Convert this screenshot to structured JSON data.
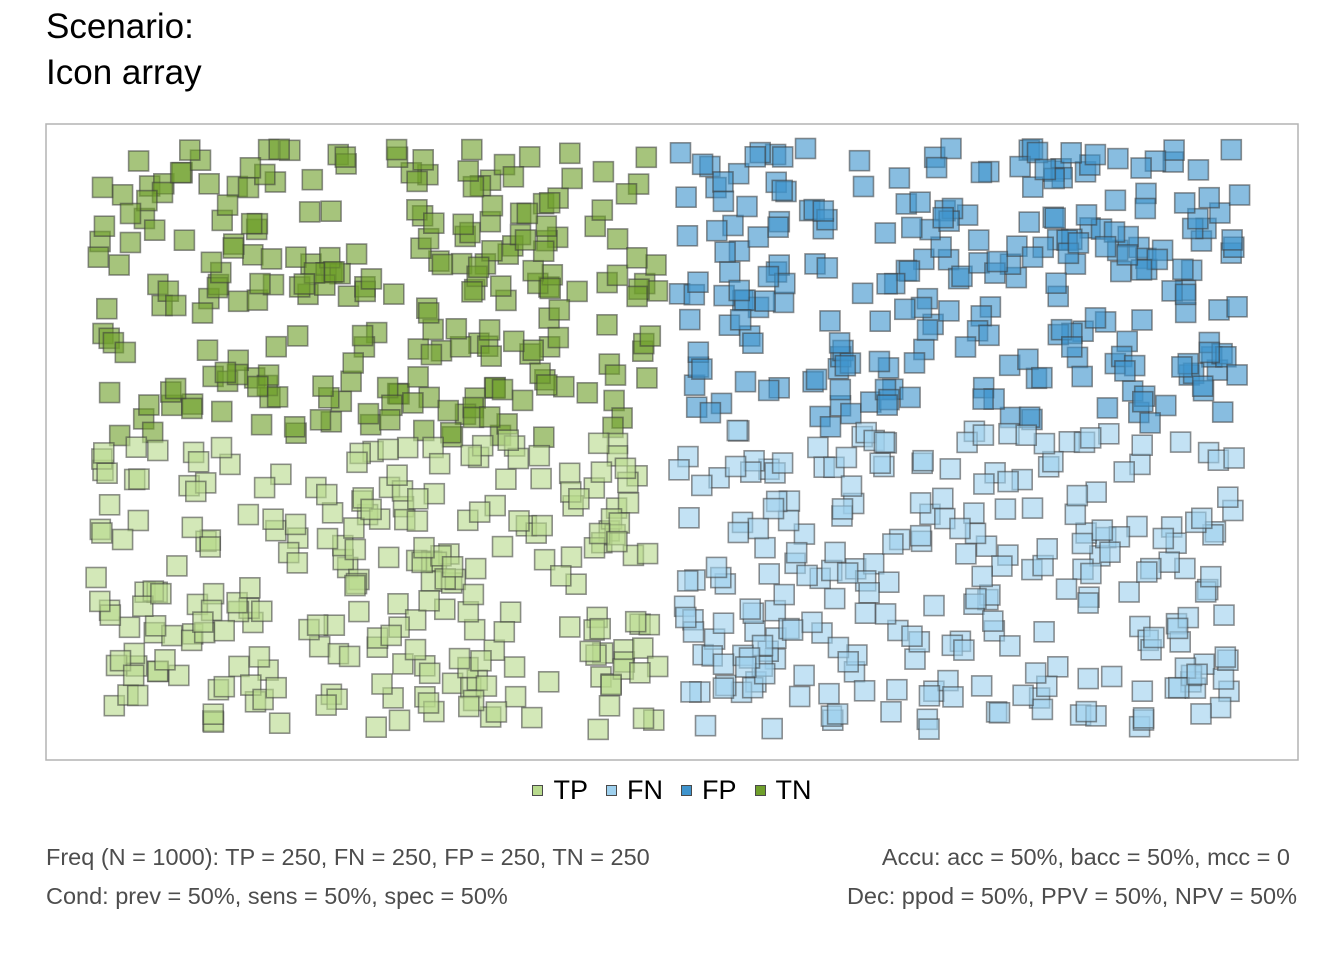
{
  "title": {
    "line1": "Scenario:",
    "line2": "Icon array"
  },
  "chart_data": {
    "type": "scatter",
    "description_of_marks": "icon array of 1000 semi-transparent square icons, one per case",
    "N": 1000,
    "groups": [
      {
        "key": "TP",
        "label": "TP",
        "count": 250,
        "color": "#b8da8d"
      },
      {
        "key": "FN",
        "label": "FN",
        "count": 250,
        "color": "#9ed0ee"
      },
      {
        "key": "FP",
        "label": "FP",
        "count": 250,
        "color": "#3f94cd"
      },
      {
        "key": "TN",
        "label": "TN",
        "count": 250,
        "color": "#6f9f2b"
      }
    ],
    "arrangement": {
      "TN": "left half, upper part",
      "TP": "left half, lower part",
      "FP": "right half, upper part",
      "FN": "right half, lower part"
    },
    "legend_position": "bottom",
    "grid": false
  },
  "legend": [
    {
      "label": "TP",
      "color": "#b8da8d"
    },
    {
      "label": "FN",
      "color": "#9ed0ee"
    },
    {
      "label": "FP",
      "color": "#3f94cd"
    },
    {
      "label": "TN",
      "color": "#6f9f2b"
    }
  ],
  "summary": {
    "freq": "Freq (N = 1000):  TP = 250, FN = 250, FP = 250, TN = 250",
    "accu": "Accu:  acc = 50%, bacc = 50%, mcc = 0",
    "cond": "Cond:  prev = 50%, sens = 50%, spec = 50%",
    "dec": "Dec:  ppod = 50%, PPV = 50%, NPV = 50%"
  },
  "colors": {
    "panel_border": "#b3b3b3",
    "icon_border": "#3a3a3a",
    "summary_text": "#4d4d4d"
  }
}
